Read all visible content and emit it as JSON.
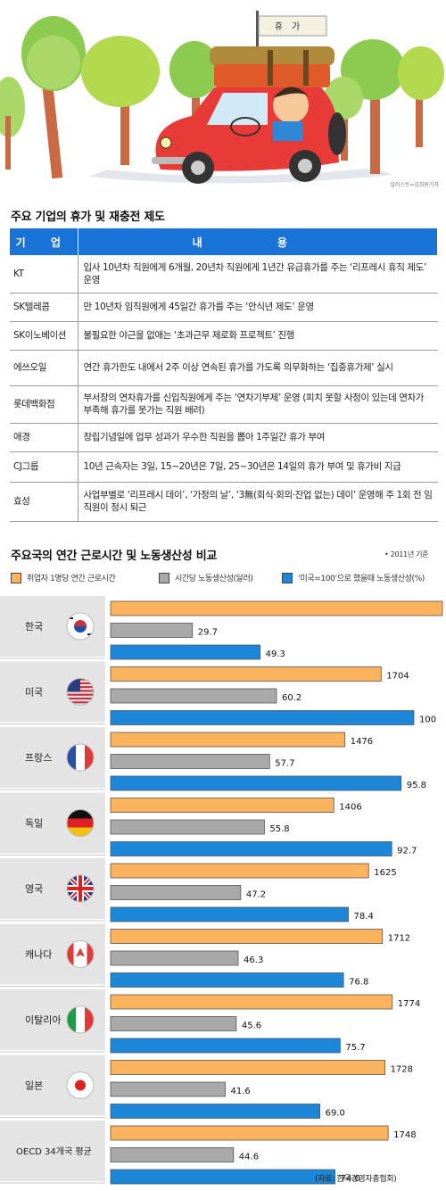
{
  "illustration": {
    "sign_text": "휴가",
    "credit": "일러스트=김희원기자",
    "colors": {
      "car": "#e83a37",
      "tree": "#8ccb4f",
      "trunk": "#c96a45",
      "luggage": "#b08b3c"
    }
  },
  "table": {
    "title": "주요 기업의 휴가 및 재충전 제도",
    "headers": [
      "기 업",
      "내 용"
    ],
    "header_color": "#1a73d6",
    "rows": [
      {
        "company": "KT",
        "desc": "입사 10년차 직원에게 6개월, 20년차 직원에게 1년간 유급휴가를 주는 ‘리프레시 휴직 제도’ 운영"
      },
      {
        "company": "SK텔레콤",
        "desc": "만 10년차 임직원에게 45일간 휴가를 주는 ‘안식년 제도’ 운영"
      },
      {
        "company": "SK이노베이션",
        "desc": "불필요한 야근을 없애는 ‘초과근무 제로화 프로젝트’ 진행"
      },
      {
        "company": "에쓰오일",
        "desc": "연간 휴가한도 내에서 2주 이상 연속된 휴가를 가도록 의무화하는 ‘집중휴가제’ 실시"
      },
      {
        "company": "롯데백화점",
        "desc": "부서장의 연차휴가를 신입직원에게 주는 ‘연차기부제’ 운영 (피치 못할 사정이 있는데 연차가 부족해 휴가를 못가는 직원 배려)"
      },
      {
        "company": "애경",
        "desc": "창립기념일에 업무 성과가 우수한 직원을 뽑아 1주일간 휴가 부여"
      },
      {
        "company": "CJ그룹",
        "desc": "10년 근속자는 3일, 15~20년은 7일, 25~30년은 14일의 휴가 부여 및 휴가비 지급"
      },
      {
        "company": "효성",
        "desc": "사업부별로 ‘리프레시 데이’, ‘가정의 날’, ‘3無(회식·회의·잔업 없는) 데이’ 운영해 주 1회 전 임직원이 정시 퇴근"
      }
    ]
  },
  "chart_data": {
    "type": "bar",
    "orientation": "horizontal",
    "title": "주요국의 연간 근로시간 및 노동생산성 비교",
    "note": "• 2011년 기준",
    "source": "(자료: 한국경영자총협회)",
    "categories": [
      "한국",
      "미국",
      "프랑스",
      "독일",
      "영국",
      "캐나다",
      "이탈리아",
      "일본",
      "OECD 34개국 평균"
    ],
    "series": [
      {
        "name": "취업자 1명당 연간 근로시간",
        "color": "#fbb35e",
        "values": [
          2090,
          1704,
          1476,
          1406,
          1625,
          1712,
          1774,
          1728,
          1748
        ],
        "labels": [
          "2090",
          "1704",
          "1476",
          "1406",
          "1625",
          "1712",
          "1774",
          "1728",
          "1748"
        ]
      },
      {
        "name": "시간당 노동생산성(달러)",
        "color": "#a9a9a9",
        "values": [
          29.7,
          60.2,
          57.7,
          55.8,
          47.2,
          46.3,
          45.6,
          41.6,
          44.6
        ],
        "labels": [
          "29.7",
          "60.2",
          "57.7",
          "55.8",
          "47.2",
          "46.3",
          "45.6",
          "41.6",
          "44.6"
        ]
      },
      {
        "name": "‘미국=100’으로 했을때 노동생산성(%)",
        "color": "#1c86d8",
        "values": [
          49.3,
          100,
          95.8,
          92.7,
          78.4,
          76.8,
          75.7,
          69.0,
          74.0
        ],
        "labels": [
          "49.3",
          "100",
          "95.8",
          "92.7",
          "78.4",
          "76.8",
          "75.7",
          "69.0",
          "74.0"
        ]
      }
    ],
    "flags": [
      "korea-flag-icon",
      "usa-flag-icon",
      "france-flag-icon",
      "germany-flag-icon",
      "uk-flag-icon",
      "canada-flag-icon",
      "italy-flag-icon",
      "japan-flag-icon",
      ""
    ],
    "legend_placement": "top",
    "grid": false
  }
}
